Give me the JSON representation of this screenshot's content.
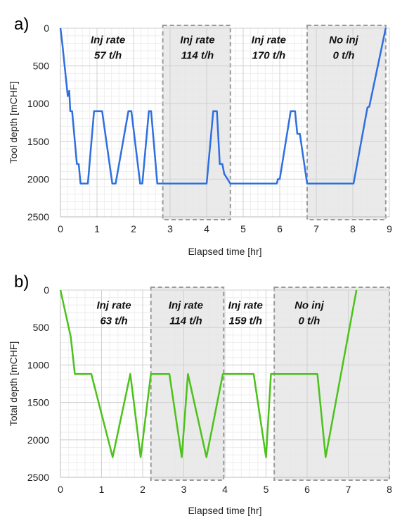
{
  "chart_data": [
    {
      "type": "line",
      "panel_label": "a)",
      "xlabel": "Elapsed time [hr]",
      "ylabel": "Tool depth [mCHF]",
      "xlim": [
        0,
        9
      ],
      "ylim": [
        0,
        2500
      ],
      "y_inverted": true,
      "grid": "major and minor",
      "x_ticks": [
        "0",
        "1",
        "2",
        "3",
        "4",
        "5",
        "6",
        "7",
        "8",
        "9"
      ],
      "y_ticks": [
        "0",
        "500",
        "1000",
        "1500",
        "2000",
        "2500"
      ],
      "series": [
        {
          "color": "#2e6fe0",
          "x": [
            0.0,
            0.05,
            0.2,
            0.24,
            0.27,
            0.32,
            0.45,
            0.5,
            0.55,
            0.75,
            0.92,
            1.14,
            1.42,
            1.51,
            1.86,
            1.94,
            2.18,
            2.24,
            2.42,
            2.48,
            2.65,
            3.1,
            3.6,
            4.0,
            4.18,
            4.28,
            4.36,
            4.43,
            4.48,
            4.65,
            5.1,
            5.6,
            5.92,
            5.95,
            6.0,
            6.3,
            6.42,
            6.48,
            6.55,
            6.75,
            7.5,
            8.02,
            8.4,
            8.45,
            8.9
          ],
          "y": [
            0,
            200,
            900,
            830,
            1100,
            1100,
            1800,
            1800,
            2060,
            2060,
            1100,
            1100,
            2060,
            2060,
            1100,
            1100,
            2060,
            2060,
            1100,
            1100,
            2060,
            2060,
            2060,
            2060,
            1100,
            1100,
            1800,
            1800,
            1930,
            2060,
            2060,
            2060,
            2060,
            2000,
            2000,
            1100,
            1100,
            1400,
            1400,
            2060,
            2060,
            2060,
            1050,
            1040,
            0
          ]
        }
      ],
      "annotations": [
        {
          "lines": [
            "Inj rate",
            "57 t/h"
          ],
          "x": 1.3,
          "y": 200
        },
        {
          "lines": [
            "Inj rate",
            "114 t/h"
          ],
          "x": 3.75,
          "y": 200
        },
        {
          "lines": [
            "Inj rate",
            "170 t/h"
          ],
          "x": 5.7,
          "y": 200
        },
        {
          "lines": [
            "No inj",
            "0 t/h"
          ],
          "x": 7.75,
          "y": 200
        }
      ],
      "shaded_regions": [
        [
          2.8,
          4.65
        ],
        [
          6.75,
          8.9
        ]
      ]
    },
    {
      "type": "line",
      "panel_label": "b)",
      "xlabel": "Elapsed time [hr]",
      "ylabel": "Total depth [mCHF]",
      "xlim": [
        0,
        8
      ],
      "ylim": [
        0,
        2500
      ],
      "y_inverted": true,
      "grid": "major and minor",
      "x_ticks": [
        "0",
        "1",
        "2",
        "3",
        "4",
        "5",
        "6",
        "7",
        "8"
      ],
      "y_ticks": [
        "0",
        "500",
        "1000",
        "1500",
        "2000",
        "2500"
      ],
      "series": [
        {
          "color": "#4cc21a",
          "x": [
            0.0,
            0.25,
            0.35,
            0.75,
            1.27,
            1.7,
            1.95,
            2.2,
            2.65,
            2.95,
            3.1,
            3.55,
            3.95,
            4.7,
            5.0,
            5.12,
            6.25,
            6.45,
            7.2
          ],
          "y": [
            0,
            620,
            1120,
            1120,
            2230,
            1120,
            2230,
            1120,
            1120,
            2230,
            1120,
            2230,
            1120,
            1120,
            2230,
            1120,
            1120,
            2230,
            0
          ]
        }
      ],
      "annotations": [
        {
          "lines": [
            "Inj rate",
            "63 t/h"
          ],
          "x": 1.3,
          "y": 250
        },
        {
          "lines": [
            "Inj rate",
            "114 t/h"
          ],
          "x": 3.05,
          "y": 250
        },
        {
          "lines": [
            "Inj rate",
            "159 t/h"
          ],
          "x": 4.5,
          "y": 250
        },
        {
          "lines": [
            "No inj",
            "0 t/h"
          ],
          "x": 6.05,
          "y": 250
        }
      ],
      "shaded_regions": [
        [
          2.2,
          3.97
        ],
        [
          5.2,
          8.0
        ]
      ]
    }
  ]
}
